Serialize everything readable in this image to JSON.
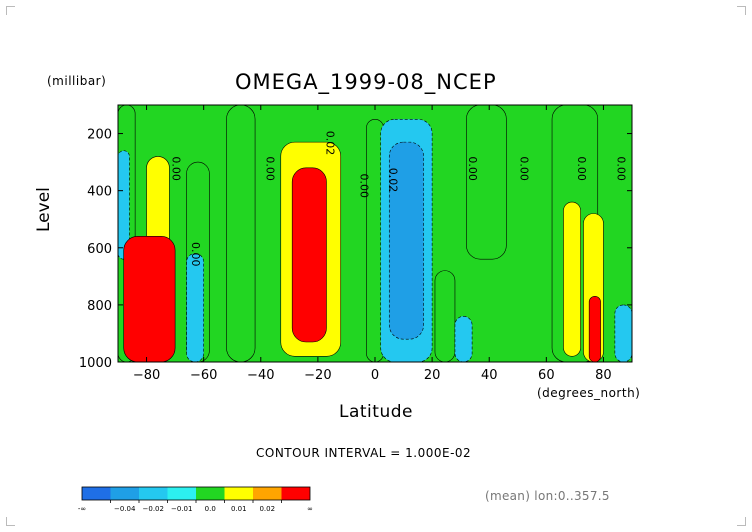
{
  "chart_data": {
    "type": "heatmap",
    "title": "OMEGA_1999-08_NCEP",
    "units_label": "(millibar)",
    "ylabel": "Level",
    "xlabel": "Latitude",
    "x_units_label": "(degrees_north)",
    "footer": "CONTOUR INTERVAL = 1.000E-02",
    "note": "(mean) lon:0..357.5",
    "xlim": [
      -90,
      90
    ],
    "ylim": [
      1000,
      100
    ],
    "x_ticks": [
      -80,
      -60,
      -40,
      -20,
      0,
      20,
      40,
      60,
      80
    ],
    "x_tick_labels": [
      "−80",
      "−60",
      "−40",
      "−20",
      "0",
      "20",
      "40",
      "60",
      "80"
    ],
    "y_ticks": [
      200,
      400,
      600,
      800,
      1000
    ],
    "y_tick_labels": [
      "200",
      "400",
      "600",
      "800",
      "1000"
    ],
    "background_level": 0.0,
    "levels": [
      {
        "label": "-∞",
        "color": "#1f6fe6"
      },
      {
        "label": "−0.04",
        "color": "#1f9fe6"
      },
      {
        "label": "−0.02",
        "color": "#24c8f0"
      },
      {
        "label": "−0.01",
        "color": "#2cf0f0"
      },
      {
        "label": "0.0",
        "color": "#22d622"
      },
      {
        "label": "0.01",
        "color": "#ffff00"
      },
      {
        "label": "0.02",
        "color": "#ffa500"
      },
      {
        "label": "∞",
        "color": "#ff0000"
      }
    ],
    "bands": [
      {
        "x0": -90,
        "x1": -84,
        "p0": 100,
        "p1": 1000,
        "value": 0.005
      },
      {
        "x0": -90,
        "x1": -86,
        "p0": 260,
        "p1": 640,
        "value": -0.015
      },
      {
        "x0": -80,
        "x1": -72,
        "p0": 280,
        "p1": 760,
        "value": 0.015
      },
      {
        "x0": -88,
        "x1": -70,
        "p0": 560,
        "p1": 1000,
        "value": 0.06
      },
      {
        "x0": -66,
        "x1": -58,
        "p0": 300,
        "p1": 1000,
        "value": 0.005
      },
      {
        "x0": -66,
        "x1": -60,
        "p0": 620,
        "p1": 1000,
        "value": -0.015
      },
      {
        "x0": -52,
        "x1": -42,
        "p0": 100,
        "p1": 1000,
        "value": 0.005
      },
      {
        "x0": -33,
        "x1": -12,
        "p0": 230,
        "p1": 980,
        "value": 0.015
      },
      {
        "x0": -29,
        "x1": -17,
        "p0": 320,
        "p1": 930,
        "value": 0.03
      },
      {
        "x0": -3,
        "x1": 3,
        "p0": 150,
        "p1": 1000,
        "value": 0.005
      },
      {
        "x0": 2,
        "x1": 20,
        "p0": 150,
        "p1": 1000,
        "value": -0.015
      },
      {
        "x0": 5,
        "x1": 17,
        "p0": 230,
        "p1": 920,
        "value": -0.03
      },
      {
        "x0": 21,
        "x1": 28,
        "p0": 680,
        "p1": 1000,
        "value": 0.005
      },
      {
        "x0": 28,
        "x1": 34,
        "p0": 840,
        "p1": 1000,
        "value": -0.015
      },
      {
        "x0": 32,
        "x1": 46,
        "p0": 100,
        "p1": 640,
        "value": 0.005
      },
      {
        "x0": 62,
        "x1": 78,
        "p0": 100,
        "p1": 1000,
        "value": 0.005
      },
      {
        "x0": 66,
        "x1": 72,
        "p0": 440,
        "p1": 980,
        "value": 0.015
      },
      {
        "x0": 73,
        "x1": 80,
        "p0": 480,
        "p1": 1000,
        "value": 0.015
      },
      {
        "x0": 75,
        "x1": 79,
        "p0": 770,
        "p1": 1000,
        "value": 0.03
      },
      {
        "x0": 84,
        "x1": 90,
        "p0": 800,
        "p1": 1000,
        "value": -0.015
      }
    ],
    "contour_labels": [
      {
        "text": "0.00",
        "x": -71,
        "p": 280
      },
      {
        "text": "0.00",
        "x": -64,
        "p": 580
      },
      {
        "text": "0.00",
        "x": -38,
        "p": 280
      },
      {
        "text": "0.02",
        "x": -17,
        "p": 190
      },
      {
        "text": "0.00",
        "x": -5,
        "p": 340
      },
      {
        "text": "0.02",
        "x": 5,
        "p": 320
      },
      {
        "text": "0.00",
        "x": 33,
        "p": 280
      },
      {
        "text": "0.00",
        "x": 51,
        "p": 280
      },
      {
        "text": "0.00",
        "x": 71,
        "p": 280
      },
      {
        "text": "0.00",
        "x": 85,
        "p": 280
      }
    ]
  }
}
